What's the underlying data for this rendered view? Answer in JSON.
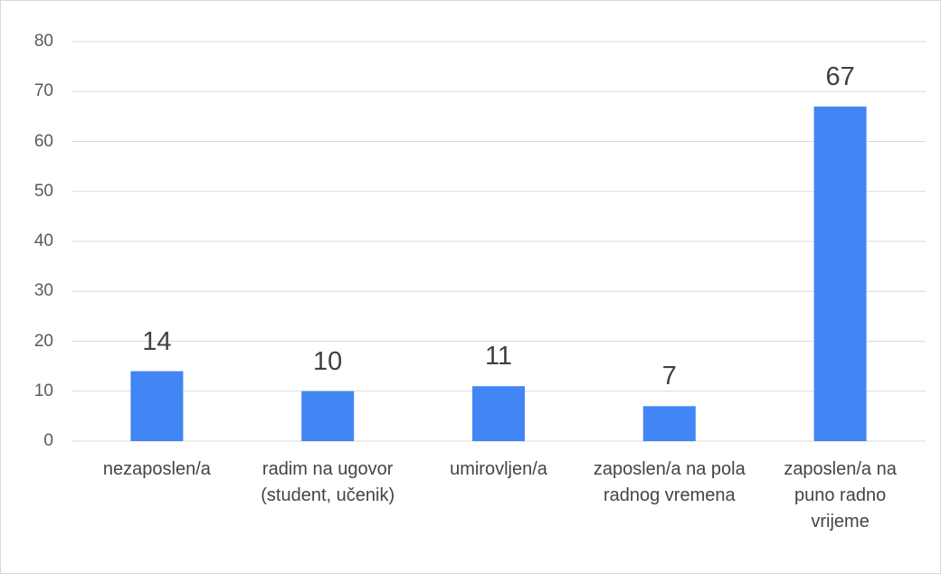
{
  "chart_data": {
    "type": "bar",
    "categories": [
      "nezaposlen/a",
      "radim na ugovor (student, učenik)",
      "umirovljen/a",
      "zaposlen/a na pola radnog vremena",
      "zaposlen/a na puno radno vrijeme"
    ],
    "values": [
      14,
      10,
      11,
      7,
      67
    ],
    "color": "#4285f4",
    "ylim": [
      0,
      80
    ],
    "yticks": [
      0,
      10,
      20,
      30,
      40,
      50,
      60,
      70,
      80
    ],
    "grid": true
  }
}
